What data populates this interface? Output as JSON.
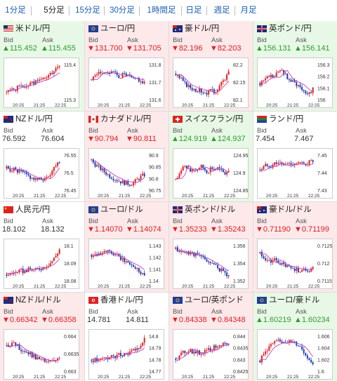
{
  "tabs": [
    {
      "label": "1分足",
      "active": false
    },
    {
      "label": "5分足",
      "active": true
    },
    {
      "label": "15分足",
      "active": false
    },
    {
      "label": "30分足",
      "active": false
    },
    {
      "label": "1時間足",
      "active": false
    },
    {
      "label": "日足",
      "active": false
    },
    {
      "label": "週足",
      "active": false
    },
    {
      "label": "月足",
      "active": false
    }
  ],
  "bid_label": "Bid",
  "ask_label": "Ask",
  "panels": [
    {
      "pair": "米ドル/円",
      "flag": "us",
      "dir": "up",
      "bid": "▲115.452",
      "ask": "▲115.455",
      "chart_data": {
        "type": "candlestick",
        "y_ticks": [
          "115.4",
          "115.3"
        ],
        "x_ticks": [
          "20:25",
          "21:25",
          "22:25"
        ],
        "trend": [
          0.22,
          0.25,
          0.3,
          0.32,
          0.35,
          0.38,
          0.4,
          0.45,
          0.48,
          0.52,
          0.55,
          0.6,
          0.65,
          0.72,
          0.8,
          0.88
        ]
      }
    },
    {
      "pair": "ユーロ/円",
      "flag": "eu",
      "dir": "down",
      "bid": "▼131.700",
      "ask": "▼131.705",
      "chart_data": {
        "type": "candlestick",
        "y_ticks": [
          "131.8",
          "131.7",
          "131.6"
        ],
        "x_ticks": [
          "20:25",
          "21:25",
          "22:25"
        ],
        "trend": [
          0.55,
          0.65,
          0.75,
          0.7,
          0.8,
          0.72,
          0.75,
          0.68,
          0.62,
          0.7,
          0.66,
          0.6,
          0.55,
          0.58,
          0.5,
          0.45
        ]
      }
    },
    {
      "pair": "豪ドル/円",
      "flag": "au",
      "dir": "down",
      "bid": "▼82.196",
      "ask": "▼82.203",
      "chart_data": {
        "type": "candlestick",
        "y_ticks": [
          "82.2",
          "82.15",
          "82.1"
        ],
        "x_ticks": [
          "20:25",
          "21:25",
          "22:25"
        ],
        "trend": [
          0.7,
          0.6,
          0.5,
          0.4,
          0.35,
          0.3,
          0.28,
          0.25,
          0.22,
          0.2,
          0.25,
          0.22,
          0.35,
          0.45,
          0.6,
          0.72
        ]
      }
    },
    {
      "pair": "英ポンド/円",
      "flag": "gb",
      "dir": "up",
      "bid": "▲156.131",
      "ask": "▲156.141",
      "chart_data": {
        "type": "candlestick",
        "y_ticks": [
          "156.3",
          "156.2",
          "156.1",
          "156"
        ],
        "x_ticks": [
          "20:25",
          "21:25",
          "22:25"
        ],
        "trend": [
          0.45,
          0.55,
          0.6,
          0.65,
          0.6,
          0.72,
          0.85,
          0.7,
          0.55,
          0.5,
          0.45,
          0.4,
          0.3,
          0.22,
          0.2,
          0.28
        ]
      }
    },
    {
      "pair": "NZドル/円",
      "flag": "nz",
      "dir": "neutral",
      "bid": "76.592",
      "ask": "76.604",
      "chart_data": {
        "type": "candlestick",
        "y_ticks": [
          "76.55",
          "76.5",
          "76.45"
        ],
        "x_ticks": [
          "20:25",
          "21:25",
          "22:25"
        ],
        "trend": [
          0.6,
          0.55,
          0.58,
          0.5,
          0.52,
          0.45,
          0.4,
          0.35,
          0.3,
          0.28,
          0.32,
          0.3,
          0.4,
          0.55,
          0.7,
          0.8
        ]
      }
    },
    {
      "pair": "カナダドル/円",
      "flag": "ca",
      "dir": "down",
      "bid": "▼90.794",
      "ask": "▼90.811",
      "chart_data": {
        "type": "candlestick",
        "y_ticks": [
          "90.9",
          "90.85",
          "90.8",
          "90.75"
        ],
        "x_ticks": [
          "20:25",
          "21:25",
          "22:25"
        ],
        "trend": [
          0.8,
          0.7,
          0.62,
          0.55,
          0.48,
          0.4,
          0.35,
          0.3,
          0.25,
          0.22,
          0.2,
          0.18,
          0.22,
          0.3,
          0.38,
          0.42
        ]
      }
    },
    {
      "pair": "スイスフラン/円",
      "flag": "ch",
      "dir": "up",
      "bid": "▲124.919",
      "ask": "▲124.937",
      "chart_data": {
        "type": "candlestick",
        "y_ticks": [
          "124.95",
          "124.9",
          "124.85"
        ],
        "x_ticks": [
          "20:25",
          "21:25",
          "22:25"
        ],
        "trend": [
          0.3,
          0.4,
          0.7,
          0.6,
          0.5,
          0.62,
          0.55,
          0.65,
          0.58,
          0.5,
          0.62,
          0.55,
          0.6,
          0.5,
          0.45,
          0.55
        ]
      }
    },
    {
      "pair": "ランド/円",
      "flag": "za",
      "dir": "neutral",
      "bid": "7.454",
      "ask": "7.467",
      "chart_data": {
        "type": "candlestick",
        "y_ticks": [
          "7.45",
          "7.44",
          "7.43"
        ],
        "x_ticks": [
          "20:25",
          "21:25",
          "22:25"
        ],
        "trend": [
          0.55,
          0.62,
          0.7,
          0.65,
          0.72,
          0.75,
          0.7,
          0.68,
          0.72,
          0.7,
          0.74,
          0.72,
          0.7,
          0.72,
          0.76,
          0.78
        ]
      }
    },
    {
      "pair": "人民元/円",
      "flag": "cn",
      "dir": "neutral",
      "bid": "18.102",
      "ask": "18.132",
      "chart_data": {
        "type": "candlestick",
        "y_ticks": [
          "18.1",
          "18.09",
          "18.08"
        ],
        "x_ticks": [
          "20:25",
          "21:25",
          "22:25"
        ],
        "trend": [
          0.18,
          0.2,
          0.24,
          0.22,
          0.28,
          0.26,
          0.3,
          0.32,
          0.28,
          0.34,
          0.36,
          0.4,
          0.45,
          0.55,
          0.68,
          0.85
        ]
      }
    },
    {
      "pair": "ユーロ/ドル",
      "flag": "eu",
      "dir": "down",
      "bid": "▼1.14070",
      "ask": "▼1.14074",
      "chart_data": {
        "type": "candlestick",
        "y_ticks": [
          "1.143",
          "1.142",
          "1.141",
          "1.14"
        ],
        "x_ticks": [
          "20:25",
          "21:25",
          "22:25"
        ],
        "trend": [
          0.7,
          0.72,
          0.75,
          0.78,
          0.8,
          0.76,
          0.72,
          0.68,
          0.62,
          0.55,
          0.5,
          0.45,
          0.4,
          0.32,
          0.25,
          0.15
        ]
      }
    },
    {
      "pair": "英ポンド/ドル",
      "flag": "gb",
      "dir": "down",
      "bid": "▼1.35233",
      "ask": "▼1.35243",
      "chart_data": {
        "type": "candlestick",
        "y_ticks": [
          "1.356",
          "1.354",
          "1.352"
        ],
        "x_ticks": [
          "20:25",
          "21:25",
          "22:25"
        ],
        "trend": [
          0.85,
          0.8,
          0.78,
          0.75,
          0.78,
          0.72,
          0.7,
          0.65,
          0.6,
          0.55,
          0.48,
          0.42,
          0.35,
          0.28,
          0.22,
          0.15
        ]
      }
    },
    {
      "pair": "豪ドル/ドル",
      "flag": "au",
      "dir": "down",
      "bid": "▼0.71190",
      "ask": "▼0.71199",
      "chart_data": {
        "type": "candlestick",
        "y_ticks": [
          "0.7125",
          "0.712",
          "0.7115"
        ],
        "x_ticks": [
          "20:25",
          "21:25",
          "22:25"
        ],
        "trend": [
          0.75,
          0.65,
          0.55,
          0.5,
          0.58,
          0.52,
          0.45,
          0.4,
          0.38,
          0.35,
          0.32,
          0.3,
          0.28,
          0.32,
          0.3,
          0.35
        ]
      }
    },
    {
      "pair": "NZドル/ドル",
      "flag": "nz",
      "dir": "down",
      "bid": "▼0.66342",
      "ask": "▼0.66358",
      "chart_data": {
        "type": "candlestick",
        "y_ticks": [
          "0.664",
          "0.6635",
          "0.663"
        ],
        "x_ticks": [
          "20:25",
          "21:25",
          "22:25"
        ],
        "trend": [
          0.7,
          0.72,
          0.75,
          0.68,
          0.6,
          0.55,
          0.5,
          0.45,
          0.4,
          0.35,
          0.3,
          0.28,
          0.25,
          0.3,
          0.28,
          0.32
        ]
      }
    },
    {
      "pair": "香港ドル/円",
      "flag": "hk",
      "dir": "neutral",
      "bid": "14.781",
      "ask": "14.811",
      "chart_data": {
        "type": "candlestick",
        "y_ticks": [
          "14.8",
          "14.79",
          "14.78",
          "14.77"
        ],
        "x_ticks": [
          "20:25",
          "21:25",
          "22:25"
        ],
        "trend": [
          0.3,
          0.32,
          0.28,
          0.35,
          0.38,
          0.36,
          0.4,
          0.42,
          0.45,
          0.48,
          0.5,
          0.52,
          0.55,
          0.6,
          0.72,
          0.85
        ]
      }
    },
    {
      "pair": "ユーロ/英ポンド",
      "flag": "eu",
      "dir": "down",
      "bid": "▼0.84338",
      "ask": "▼0.84348",
      "chart_data": {
        "type": "candlestick",
        "y_ticks": [
          "0.844",
          "0.8435",
          "0.843",
          "0.8425"
        ],
        "x_ticks": [
          "20:25",
          "21:25",
          "22:25"
        ],
        "trend": [
          0.35,
          0.4,
          0.5,
          0.55,
          0.6,
          0.5,
          0.52,
          0.48,
          0.55,
          0.62,
          0.58,
          0.65,
          0.7,
          0.75,
          0.72,
          0.68
        ]
      }
    },
    {
      "pair": "ユーロ/豪ドル",
      "flag": "eu",
      "dir": "up",
      "bid": "▲1.60219",
      "ask": "▲1.60234",
      "chart_data": {
        "type": "candlestick",
        "y_ticks": [
          "1.606",
          "1.604",
          "1.602",
          "1.6"
        ],
        "x_ticks": [
          "20:25",
          "21:25",
          "22:25"
        ],
        "trend": [
          0.3,
          0.45,
          0.6,
          0.7,
          0.75,
          0.8,
          0.78,
          0.82,
          0.8,
          0.78,
          0.75,
          0.7,
          0.6,
          0.45,
          0.32,
          0.25
        ]
      }
    }
  ]
}
